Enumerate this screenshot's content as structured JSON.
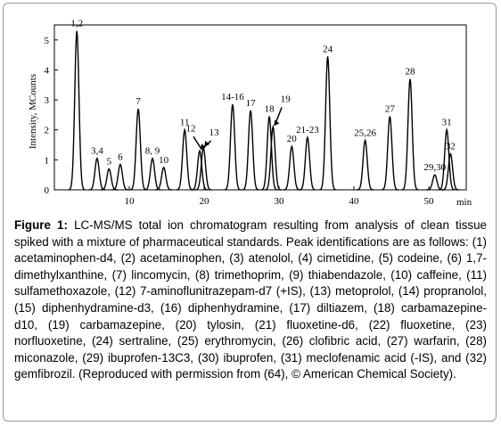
{
  "chart_data": {
    "type": "chromatogram",
    "y_label": "Intensity, MCounts",
    "x_label": "min",
    "xlim": [
      0,
      55
    ],
    "ylim": [
      0,
      5.5
    ],
    "xticks": [
      10,
      20,
      30,
      40,
      50
    ],
    "yticks": [
      0,
      1,
      2,
      3,
      4,
      5
    ],
    "color": "#000000",
    "peaks": [
      {
        "label": "1,2",
        "x": 3.0,
        "y": 5.3
      },
      {
        "label": "3,4",
        "x": 5.7,
        "y": 1.05
      },
      {
        "label": "5",
        "x": 7.3,
        "y": 0.7
      },
      {
        "label": "6",
        "x": 8.8,
        "y": 0.85
      },
      {
        "label": "7",
        "x": 11.2,
        "y": 2.7
      },
      {
        "label": "8, 9",
        "x": 13.1,
        "y": 1.05
      },
      {
        "label": "10",
        "x": 14.6,
        "y": 0.75
      },
      {
        "label": "11",
        "x": 17.4,
        "y": 2.0
      },
      {
        "label": "12",
        "x": 19.4,
        "y": 1.3
      },
      {
        "label": "13",
        "x": 19.9,
        "y": 1.4
      },
      {
        "label": "14-16",
        "x": 23.8,
        "y": 2.85
      },
      {
        "label": "17",
        "x": 26.2,
        "y": 2.65
      },
      {
        "label": "18",
        "x": 28.7,
        "y": 2.45
      },
      {
        "label": "19",
        "x": 29.2,
        "y": 2.1
      },
      {
        "label": "20",
        "x": 31.7,
        "y": 1.45
      },
      {
        "label": "21-23",
        "x": 33.8,
        "y": 1.75
      },
      {
        "label": "24",
        "x": 36.5,
        "y": 4.45
      },
      {
        "label": "25,26",
        "x": 41.5,
        "y": 1.65
      },
      {
        "label": "27",
        "x": 44.8,
        "y": 2.45
      },
      {
        "label": "28",
        "x": 47.5,
        "y": 3.7
      },
      {
        "label": "29,30",
        "x": 50.8,
        "y": 0.5
      },
      {
        "label": "31",
        "x": 52.4,
        "y": 2.0
      },
      {
        "label": "32",
        "x": 52.9,
        "y": 1.2
      }
    ]
  },
  "figure": {
    "label": "Figure 1:",
    "caption": "LC-MS/MS total ion chromatogram resulting from analysis of clean tissue spiked with a mixture of pharmaceutical standards. Peak identifications are as follows: (1) acetaminophen-d4, (2) acetaminophen, (3) atenolol, (4) cimetidine, (5) codeine, (6) 1,7-dimethylxanthine, (7) lincomycin, (8) trimethoprim, (9) thiabendazole, (10) caffeine, (11) sulfamethoxazole, (12) 7-aminoflunitrazepam-d7 (+IS), (13) metoprolol, (14) propranolol, (15) diphenhydramine-d3, (16) diphenhydramine, (17) diltiazem, (18) carbamazepine-d10, (19) carbamazepine, (20) tylosin, (21) fluoxetine-d6, (22) fluoxetine, (23) norfluoxetine, (24) sertraline, (25) erythromycin, (26) clofibric acid, (27) warfarin, (28) miconazole, (29) ibuprofen-13C3, (30) ibuprofen, (31) meclofenamic acid (-IS), and (32) gemfibrozil. (Reproduced with permission from (64), © American Chemical Society)."
  }
}
